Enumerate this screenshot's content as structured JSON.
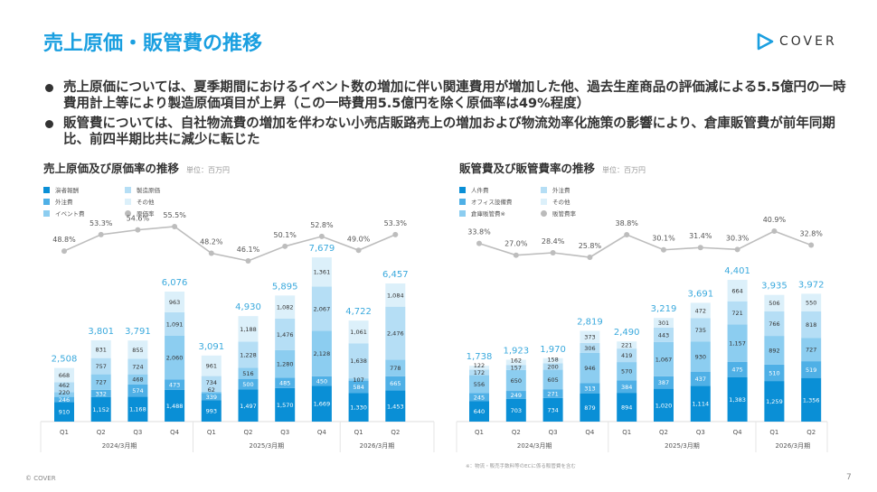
{
  "header": {
    "title": "売上原価・販管費の推移",
    "logo_text": "COVER"
  },
  "bullets": [
    "売上原価については、夏季期間におけるイベント数の増加に伴い関連費用が増加した他、過去生産商品の評価減による5.5億円の一時費用計上等により製造原価項目が上昇（この一時費用5.5億円を除く原価率は49%程度）",
    "販管費については、自社物流費の増加を伴わない小売店販路売上の増加および物流効率化施策の影響により、倉庫販管費が前年同期比、前四半期比共に減少に転じた"
  ],
  "colors": {
    "accent": "#1a9fe0",
    "seg": [
      "#0a8fd6",
      "#4fb0e6",
      "#8ccdf0",
      "#b5def5",
      "#dcf0fa"
    ],
    "rate": "#bdbdbd",
    "total": "#3aa9dd"
  },
  "chart_data": [
    {
      "type": "bar",
      "title": "売上原価及び原価率の推移",
      "unit": "単位：百万円",
      "categories": [
        "Q1",
        "Q2",
        "Q3",
        "Q4",
        "Q1",
        "Q2",
        "Q3",
        "Q4",
        "Q1",
        "Q2"
      ],
      "periods": [
        "2024/3月期",
        "2025/3月期",
        "2026/3月期"
      ],
      "series": [
        {
          "name": "演者報酬",
          "values": [
            910,
            1152,
            1168,
            1488,
            993,
            1497,
            1570,
            1669,
            1330,
            1453
          ]
        },
        {
          "name": "外注費",
          "values": [
            246,
            332,
            574,
            473,
            339,
            500,
            485,
            450,
            584,
            665
          ]
        },
        {
          "name": "イベント費",
          "values": [
            220,
            727,
            468,
            2060,
            62,
            516,
            1280,
            2128,
            107,
            778
          ]
        },
        {
          "name": "製造原価",
          "values": [
            462,
            757,
            724,
            1091,
            734,
            1228,
            1476,
            2067,
            1638,
            2476
          ]
        },
        {
          "name": "その他",
          "values": [
            668,
            831,
            855,
            963,
            961,
            1188,
            1082,
            1361,
            1061,
            1084
          ]
        }
      ],
      "totals": [
        "2,508",
        "3,801",
        "3,791",
        "6,076",
        "3,091",
        "4,930",
        "5,895",
        "7,679",
        "4,722",
        "6,457"
      ],
      "rate": {
        "name": "原価率",
        "values": [
          48.8,
          53.3,
          54.6,
          55.5,
          48.2,
          46.1,
          50.1,
          52.8,
          49.0,
          53.3
        ]
      }
    },
    {
      "type": "bar",
      "title": "販管費及び販管費率の推移",
      "unit": "単位：百万円",
      "categories": [
        "Q1",
        "Q2",
        "Q3",
        "Q4",
        "Q1",
        "Q2",
        "Q3",
        "Q4",
        "Q1",
        "Q2"
      ],
      "periods": [
        "2024/3月期",
        "2025/3月期",
        "2026/3月期"
      ],
      "series": [
        {
          "name": "人件費",
          "values": [
            640,
            703,
            734,
            879,
            894,
            1020,
            1114,
            1383,
            1259,
            1356
          ]
        },
        {
          "name": "オフィス設備費",
          "values": [
            245,
            249,
            271,
            313,
            384,
            387,
            437,
            475,
            510,
            519
          ]
        },
        {
          "name": "倉庫販管費※",
          "values": [
            556,
            650,
            605,
            946,
            570,
            1067,
            930,
            1157,
            892,
            727
          ]
        },
        {
          "name": "外注費",
          "values": [
            172,
            157,
            200,
            306,
            419,
            443,
            735,
            721,
            766,
            818
          ]
        },
        {
          "name": "その他",
          "values": [
            122,
            162,
            158,
            373,
            221,
            301,
            472,
            664,
            506,
            550
          ]
        }
      ],
      "totals": [
        "1,738",
        "1,923",
        "1,970",
        "2,819",
        "2,490",
        "3,219",
        "3,691",
        "4,401",
        "3,935",
        "3,972"
      ],
      "rate": {
        "name": "販管費率",
        "values": [
          33.8,
          27.0,
          28.4,
          25.8,
          38.8,
          30.1,
          31.4,
          30.3,
          40.9,
          32.8
        ]
      },
      "note": "※：物流・販売手数料等のECに係る販管費を含む"
    }
  ],
  "footer": {
    "copyright": "© COVER",
    "page": "7"
  }
}
